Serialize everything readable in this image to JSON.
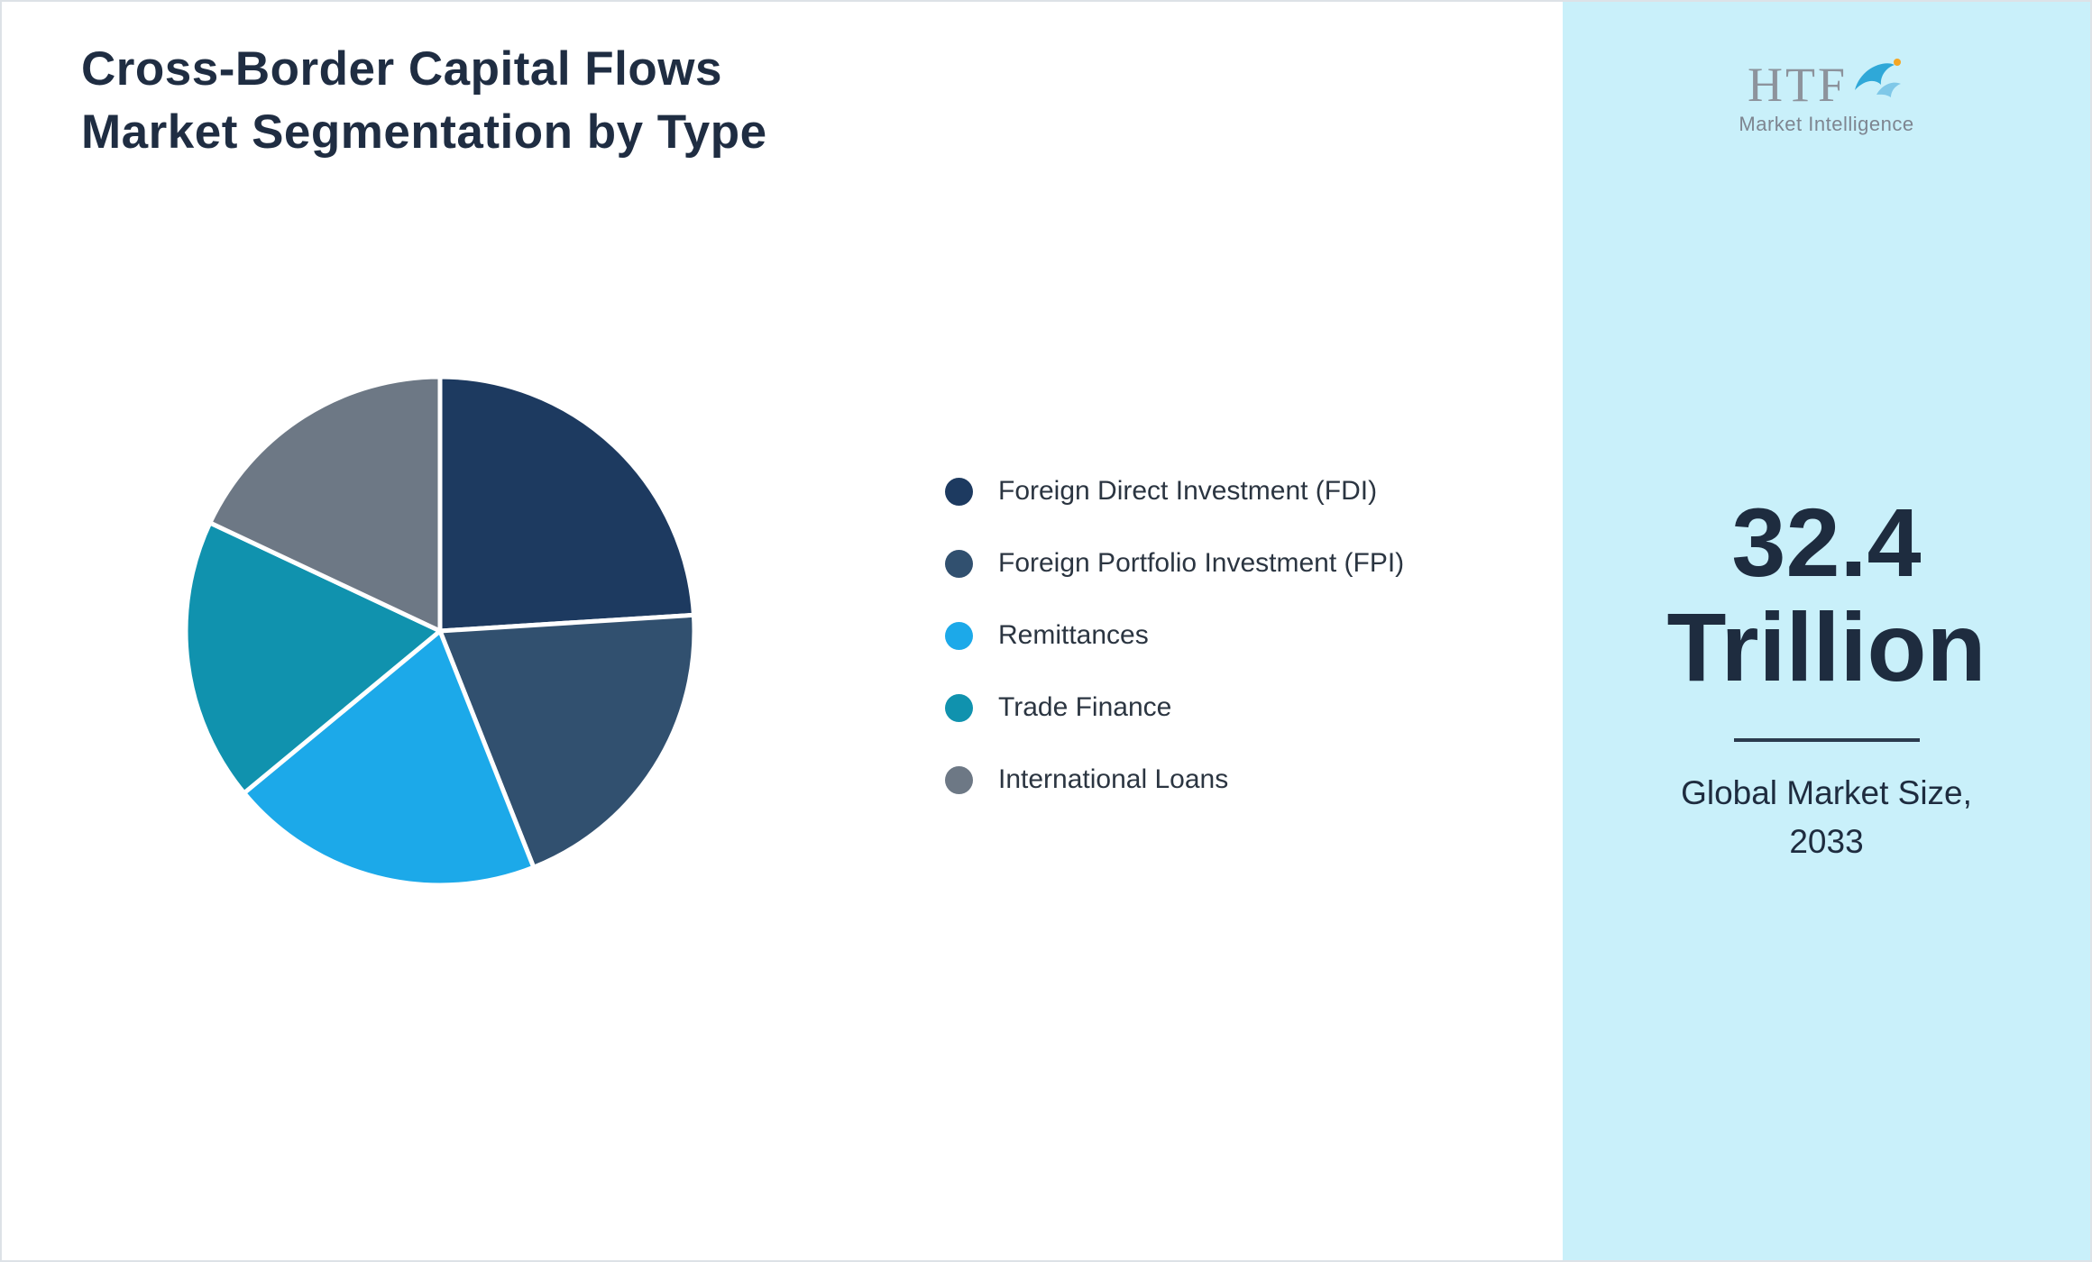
{
  "header": {
    "title_line1": "Cross-Border Capital Flows",
    "title_line2": "Market Segmentation by Type"
  },
  "chart_data": {
    "type": "pie",
    "title": "Cross-Border Capital Flows Market Segmentation by Type",
    "labels": [
      "Foreign Direct Investment (FDI)",
      "Foreign Portfolio Investment (FPI)",
      "Remittances",
      "Trade Finance",
      "International Loans"
    ],
    "values": [
      24,
      20,
      20,
      18,
      18
    ],
    "colors": [
      "#1d3a60",
      "#31506f",
      "#1ca9e9",
      "#1092ae",
      "#6d7885"
    ],
    "legend_position": "right",
    "start_angle_deg": 0,
    "direction": "clockwise",
    "slice_border_color": "#ffffff"
  },
  "side_panel": {
    "background": "#c9f0fa",
    "logo": {
      "brand": "HTF",
      "subtitle": "Market Intelligence"
    },
    "value_line1": "32.4",
    "value_line2": "Trillion",
    "caption_line1": "Global Market Size,",
    "caption_line2": "2033"
  }
}
